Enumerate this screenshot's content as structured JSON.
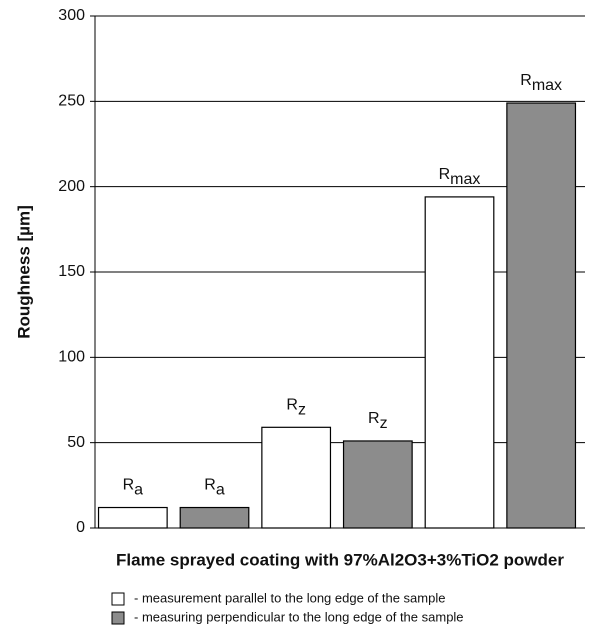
{
  "chart_data": {
    "type": "bar",
    "x_label": "Flame sprayed coating with 97%Al2O3+3%TiO2 powder",
    "y_label": "Roughness [µm]",
    "categories": [
      "Ra",
      "Rz",
      "Rmax"
    ],
    "series": [
      {
        "name": "- measurement parallel to the long edge of the sample",
        "color": "#ffffff",
        "values": [
          12,
          59,
          194
        ]
      },
      {
        "name": "- measuring perpendicular to the long edge of the sample",
        "color": "#8c8c8c",
        "values": [
          12,
          51,
          249
        ]
      }
    ],
    "ylim": [
      0,
      300
    ],
    "yticks": [
      0,
      50,
      100,
      150,
      200,
      250,
      300
    ],
    "grid": true
  }
}
